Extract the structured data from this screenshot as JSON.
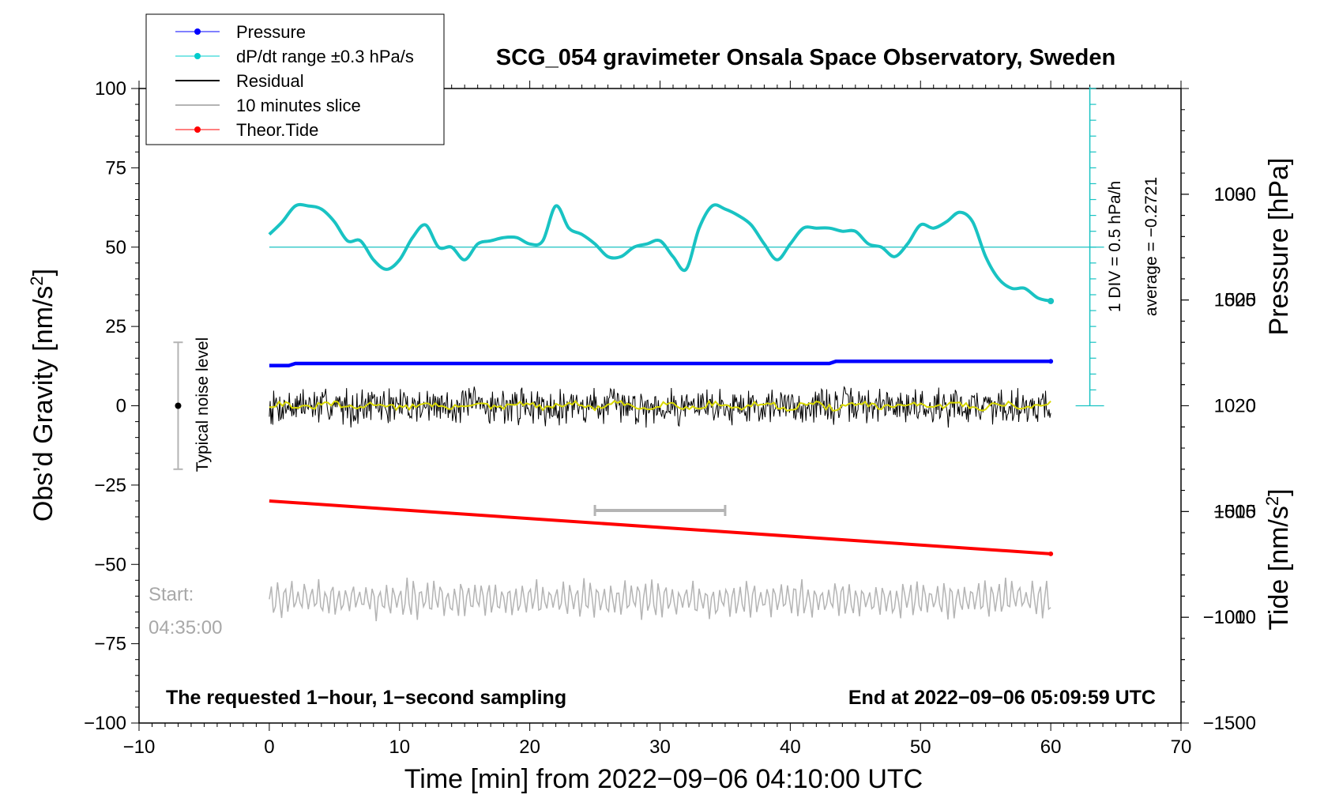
{
  "chart_data": {
    "type": "line",
    "title": "SCG_054 gravimeter Onsala Space Observatory, Sweden",
    "xlabel": "Time [min] from 2022−09−06 04:10:00 UTC",
    "ylabel": "Obs’d Gravity [nm/s",
    "ylabel_sup": "2",
    "ylabel_close": "]",
    "y2label": "Pressure [hPa]",
    "y3label": "Tide [nm/s",
    "y3label_sup": "2",
    "y3label_close": "]",
    "xlim": [
      -10,
      70
    ],
    "ylim": [
      -100,
      100
    ],
    "pressure_lim": [
      1005,
      1035
    ],
    "tide_lim": [
      -1500,
      1500
    ],
    "x_ticks": [
      -10,
      0,
      10,
      20,
      30,
      40,
      50,
      60,
      70
    ],
    "x_tick_labels": [
      "−10",
      "0",
      "10",
      "20",
      "30",
      "40",
      "50",
      "60",
      "70"
    ],
    "y_ticks": [
      100,
      75,
      50,
      25,
      0,
      -25,
      -50,
      -75,
      -100
    ],
    "y_tick_labels": [
      "100",
      "75",
      "50",
      "25",
      "0",
      "−25",
      "−50",
      "−75",
      "−100"
    ],
    "pressure_ticks": [
      1030,
      1025,
      1020,
      1015,
      1010
    ],
    "pressure_tick_labels": [
      "1030",
      "1025",
      "1020",
      "1015",
      "1010"
    ],
    "tide_ticks": [
      1000,
      500,
      0,
      -500,
      -1000,
      -1500
    ],
    "tide_tick_labels": [
      "1000",
      "500",
      "0",
      "−500",
      "−1000",
      "−1500"
    ],
    "legend": {
      "position": "top-left",
      "items": [
        {
          "label": "Pressure",
          "color": "#0000ff",
          "marker": true
        },
        {
          "label": "dP/dt range ±0.3 hPa/s",
          "color": "#00cccc",
          "marker": true
        },
        {
          "label": "Residual",
          "color": "#000000",
          "marker": false
        },
        {
          "label": "10 minutes slice",
          "color": "#b4b4b4",
          "marker": false
        },
        {
          "label": "Theor.Tide",
          "color": "#ff0000",
          "marker": true
        }
      ]
    },
    "series": [
      {
        "name": "Pressure",
        "axis": "pressure",
        "color": "#0000ff",
        "x": [
          0,
          1.5,
          2,
          43,
          43.5,
          60
        ],
        "values": [
          1021.9,
          1021.9,
          1022.0,
          1022.0,
          1022.1,
          1022.1
        ]
      },
      {
        "name": "dP/dt",
        "axis": "gravity",
        "color": "#19c3c3",
        "x": [
          0,
          1,
          2,
          3,
          4,
          5,
          6,
          7,
          8,
          9,
          10,
          11,
          12,
          13,
          14,
          15,
          16,
          17,
          18,
          19,
          20,
          21,
          22,
          23,
          24,
          25,
          26,
          27,
          28,
          29,
          30,
          31,
          32,
          33,
          34,
          35,
          36,
          37,
          38,
          39,
          40,
          41,
          42,
          43,
          44,
          45,
          46,
          47,
          48,
          49,
          50,
          51,
          52,
          53,
          54,
          55,
          56,
          57,
          58,
          59,
          60
        ],
        "values": [
          54,
          58,
          63,
          63,
          62,
          58,
          52,
          52,
          46,
          43,
          46,
          53,
          57,
          50,
          50,
          46,
          51,
          52,
          53,
          53,
          51,
          52,
          63,
          56,
          54,
          51,
          47,
          47,
          50,
          51,
          52,
          47,
          43,
          56,
          63,
          62,
          60,
          57,
          51,
          46,
          51,
          56,
          56,
          56,
          55,
          55,
          51,
          50,
          47,
          51,
          57,
          56,
          58,
          61,
          58,
          47,
          40,
          37,
          37,
          34,
          33
        ]
      },
      {
        "name": "Residual",
        "axis": "gravity",
        "color": "#000000",
        "x_range": [
          0,
          60
        ],
        "amplitude": 7
      },
      {
        "name": "Residual smoothed",
        "axis": "gravity",
        "color": "#d8d800",
        "x_range": [
          0,
          60
        ],
        "amplitude": 1.5
      },
      {
        "name": "10 minutes slice",
        "axis": "gravity",
        "color": "#b4b4b4",
        "x_range": [
          0,
          60
        ],
        "center": -61,
        "amplitude": 7
      },
      {
        "name": "Theor.Tide",
        "axis": "tide",
        "color": "#ff0000",
        "x": [
          0,
          60
        ],
        "values": [
          -450,
          -700
        ]
      }
    ],
    "reference_line": {
      "y": 50,
      "color": "#19c3c3"
    },
    "dpdt_scale": {
      "label_1": "1 DIV = 0.5 hPa/h",
      "label_2": "average = −0.2721",
      "x": 63,
      "y_top": 100,
      "y_bottom": 0,
      "divisions": 20
    },
    "noise_bar": {
      "label": "Typical noise level",
      "x": -7,
      "y_center": 0,
      "half_range": 20
    },
    "slice_bar": {
      "x_start": 25,
      "x_end": 35,
      "y": -33
    },
    "start_label_1": "Start:",
    "start_label_2": "04:35:00",
    "bottom_left_note": "The requested 1−hour, 1−second sampling",
    "bottom_right_note": "End at 2022−09−06 05:09:59 UTC"
  }
}
